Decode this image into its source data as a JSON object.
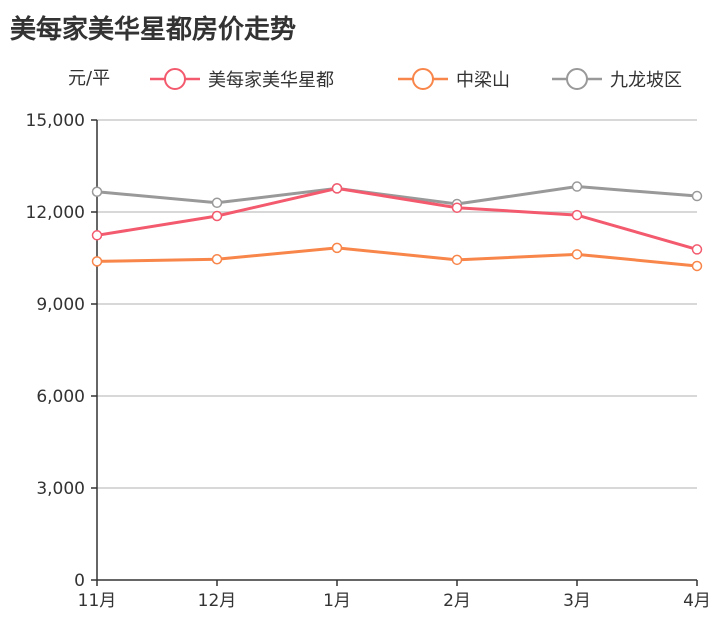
{
  "chart_data": {
    "type": "line",
    "title": "美每家美华星都房价走势",
    "ylabel": "元/平",
    "xlabel": "",
    "categories": [
      "11月",
      "12月",
      "1月",
      "2月",
      "3月",
      "4月"
    ],
    "ylim": [
      0,
      15000
    ],
    "yticks": [
      0,
      3000,
      6000,
      9000,
      12000,
      15000
    ],
    "ytick_labels": [
      "0",
      "3,000",
      "6,000",
      "9,000",
      "12,000",
      "15,000"
    ],
    "grid": true,
    "legend_position": "top",
    "series": [
      {
        "name": "美每家美华星都",
        "color": "#f35a6e",
        "values": [
          11240,
          11870,
          12770,
          12140,
          11900,
          10780
        ]
      },
      {
        "name": "中梁山",
        "color": "#f8864a",
        "values": [
          10390,
          10460,
          10830,
          10440,
          10620,
          10240
        ]
      },
      {
        "name": "九龙坡区",
        "color": "#999999",
        "values": [
          12660,
          12300,
          12770,
          12260,
          12830,
          12520
        ]
      }
    ]
  }
}
